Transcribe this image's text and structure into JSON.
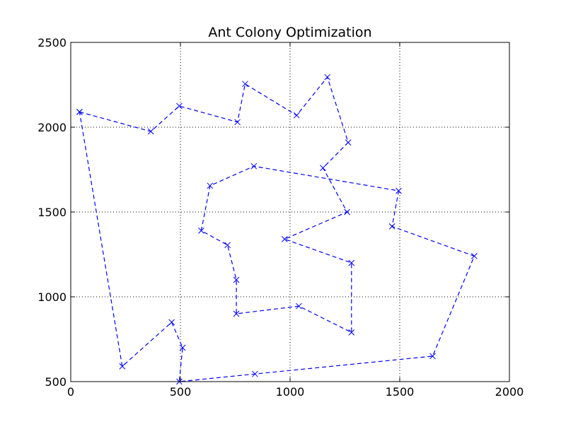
{
  "chart_data": {
    "type": "line",
    "title": "Ant Colony Optimization",
    "xlabel": "",
    "ylabel": "",
    "xlim": [
      0,
      2000
    ],
    "ylim": [
      500,
      2500
    ],
    "xticks": [
      0,
      500,
      1000,
      1500,
      2000
    ],
    "yticks": [
      500,
      1000,
      1500,
      2000,
      2500
    ],
    "xtick_labels": [
      "0",
      "500",
      "1000",
      "1500",
      "2000"
    ],
    "ytick_labels": [
      "500",
      "1000",
      "1500",
      "2000",
      "2500"
    ],
    "grid": true,
    "series": [
      {
        "style": "dashed line with x markers",
        "color": "#0000ff",
        "points": [
          [
            40,
            2090
          ],
          [
            365,
            1975
          ],
          [
            495,
            2125
          ],
          [
            760,
            2030
          ],
          [
            795,
            2255
          ],
          [
            1030,
            2070
          ],
          [
            1170,
            2295
          ],
          [
            1265,
            1910
          ],
          [
            1150,
            1760
          ],
          [
            1260,
            1500
          ],
          [
            975,
            1340
          ],
          [
            1280,
            1200
          ],
          [
            1280,
            790
          ],
          [
            1040,
            945
          ],
          [
            755,
            900
          ],
          [
            755,
            1100
          ],
          [
            715,
            1305
          ],
          [
            595,
            1390
          ],
          [
            635,
            1655
          ],
          [
            835,
            1770
          ],
          [
            1495,
            1625
          ],
          [
            1465,
            1415
          ],
          [
            1840,
            1240
          ],
          [
            1650,
            650
          ],
          [
            840,
            545
          ],
          [
            495,
            500
          ],
          [
            510,
            700
          ],
          [
            460,
            850
          ],
          [
            235,
            590
          ],
          [
            40,
            2090
          ]
        ]
      }
    ]
  }
}
